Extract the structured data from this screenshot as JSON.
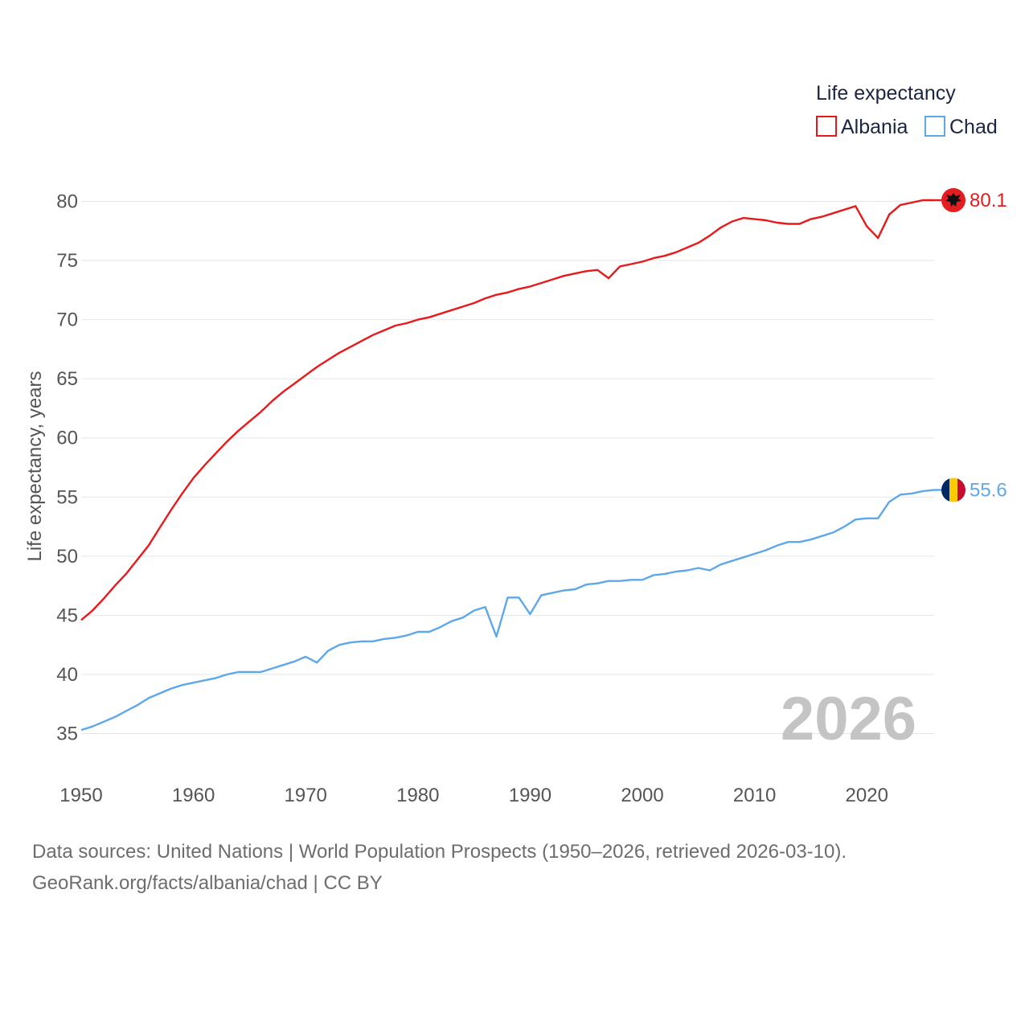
{
  "chart_data": {
    "type": "line",
    "xlabel": "",
    "ylabel": "Life expectancy, years",
    "xlim": [
      1950,
      2026
    ],
    "ylim": [
      33,
      82
    ],
    "x_ticks": [
      1950,
      1960,
      1970,
      1980,
      1990,
      2000,
      2010,
      2020
    ],
    "y_ticks": [
      35,
      40,
      45,
      50,
      55,
      60,
      65,
      70,
      75,
      80
    ],
    "grid": true,
    "legend": {
      "title": "Life expectancy",
      "position": "top-right",
      "entries": [
        "Albania",
        "Chad"
      ]
    },
    "watermark_year": "2026",
    "series": [
      {
        "name": "Albania",
        "color": "#e8191b",
        "end_label": "80.1",
        "flag": "albania-flag",
        "x": [
          1950,
          1951,
          1952,
          1953,
          1954,
          1955,
          1956,
          1957,
          1958,
          1959,
          1960,
          1961,
          1962,
          1963,
          1964,
          1965,
          1966,
          1967,
          1968,
          1969,
          1970,
          1971,
          1972,
          1973,
          1974,
          1975,
          1976,
          1977,
          1978,
          1979,
          1980,
          1981,
          1982,
          1983,
          1984,
          1985,
          1986,
          1987,
          1988,
          1989,
          1990,
          1991,
          1992,
          1993,
          1994,
          1995,
          1996,
          1997,
          1998,
          1999,
          2000,
          2001,
          2002,
          2003,
          2004,
          2005,
          2006,
          2007,
          2008,
          2009,
          2010,
          2011,
          2012,
          2013,
          2014,
          2015,
          2016,
          2017,
          2018,
          2019,
          2020,
          2021,
          2022,
          2023,
          2024,
          2025,
          2026
        ],
        "values": [
          44.6,
          45.4,
          46.4,
          47.5,
          48.5,
          49.7,
          50.9,
          52.4,
          53.9,
          55.3,
          56.6,
          57.7,
          58.7,
          59.7,
          60.6,
          61.4,
          62.2,
          63.1,
          63.9,
          64.6,
          65.3,
          66.0,
          66.6,
          67.2,
          67.7,
          68.2,
          68.7,
          69.1,
          69.5,
          69.7,
          70.0,
          70.2,
          70.5,
          70.8,
          71.1,
          71.4,
          71.8,
          72.1,
          72.3,
          72.6,
          72.8,
          73.1,
          73.4,
          73.7,
          73.9,
          74.1,
          74.2,
          73.5,
          74.5,
          74.7,
          74.9,
          75.2,
          75.4,
          75.7,
          76.1,
          76.5,
          77.1,
          77.8,
          78.3,
          78.6,
          78.5,
          78.4,
          78.2,
          78.1,
          78.1,
          78.5,
          78.7,
          79.0,
          79.3,
          79.6,
          77.9,
          76.9,
          78.9,
          79.7,
          79.9,
          80.1,
          80.1
        ]
      },
      {
        "name": "Chad",
        "color": "#5fa8e8",
        "end_label": "55.6",
        "flag": "chad-flag",
        "x": [
          1950,
          1951,
          1952,
          1953,
          1954,
          1955,
          1956,
          1957,
          1958,
          1959,
          1960,
          1961,
          1962,
          1963,
          1964,
          1965,
          1966,
          1967,
          1968,
          1969,
          1970,
          1971,
          1972,
          1973,
          1974,
          1975,
          1976,
          1977,
          1978,
          1979,
          1980,
          1981,
          1982,
          1983,
          1984,
          1985,
          1986,
          1987,
          1988,
          1989,
          1990,
          1991,
          1992,
          1993,
          1994,
          1995,
          1996,
          1997,
          1998,
          1999,
          2000,
          2001,
          2002,
          2003,
          2004,
          2005,
          2006,
          2007,
          2008,
          2009,
          2010,
          2011,
          2012,
          2013,
          2014,
          2015,
          2016,
          2017,
          2018,
          2019,
          2020,
          2021,
          2022,
          2023,
          2024,
          2025,
          2026
        ],
        "values": [
          35.3,
          35.6,
          36.0,
          36.4,
          36.9,
          37.4,
          38.0,
          38.4,
          38.8,
          39.1,
          39.3,
          39.5,
          39.7,
          40.0,
          40.2,
          40.2,
          40.2,
          40.5,
          40.8,
          41.1,
          41.5,
          41.0,
          42.0,
          42.5,
          42.7,
          42.8,
          42.8,
          43.0,
          43.1,
          43.3,
          43.6,
          43.6,
          44.0,
          44.5,
          44.8,
          45.4,
          45.7,
          43.2,
          46.5,
          46.5,
          45.1,
          46.7,
          46.9,
          47.1,
          47.2,
          47.6,
          47.7,
          47.9,
          47.9,
          48.0,
          48.0,
          48.4,
          48.5,
          48.7,
          48.8,
          49.0,
          48.8,
          49.3,
          49.6,
          49.9,
          50.2,
          50.5,
          50.9,
          51.2,
          51.2,
          51.4,
          51.7,
          52.0,
          52.5,
          53.1,
          53.2,
          53.2,
          54.6,
          55.2,
          55.3,
          55.5,
          55.6
        ]
      }
    ]
  },
  "footer": {
    "line1": "Data sources: United Nations | World Population Prospects (1950–2026, retrieved 2026-03-10).",
    "line2": "GeoRank.org/facts/albania/chad | CC BY"
  }
}
